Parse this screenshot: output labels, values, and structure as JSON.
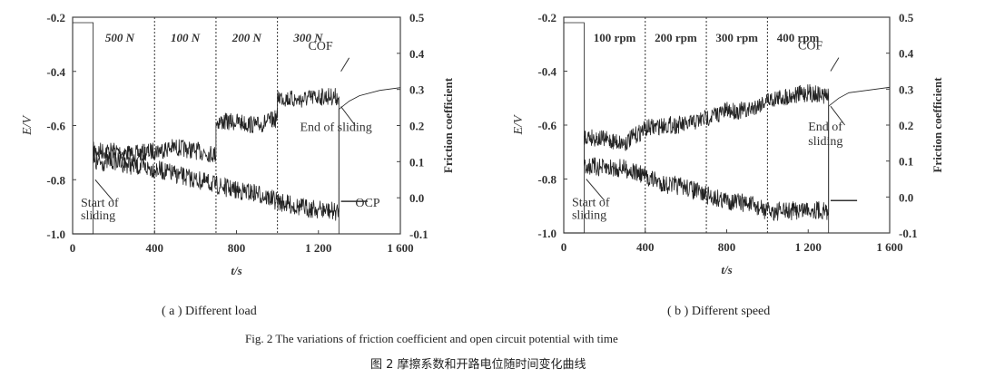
{
  "chart_data": [
    {
      "type": "line",
      "caption": "( a )  Different load",
      "xlabel": "t/s",
      "ylabel": "E/V",
      "y2label": "Friction coefficient",
      "xlim": [
        0,
        1600
      ],
      "ylim": [
        -1.0,
        -0.2
      ],
      "y2lim": [
        -0.1,
        0.5
      ],
      "xticks": [
        "0",
        "400",
        "800",
        "1 200",
        "1 600"
      ],
      "xtick_values": [
        0,
        400,
        800,
        1200,
        1600
      ],
      "yticks": [
        "-1.0",
        "-0.8",
        "-0.6",
        "-0.4",
        "-0.2"
      ],
      "ytick_values": [
        -1.0,
        -0.8,
        -0.6,
        -0.4,
        -0.2
      ],
      "y2ticks": [
        "-0.1",
        "0.0",
        "0.1",
        "0.2",
        "0.3",
        "0.4",
        "0.5"
      ],
      "y2tick_values": [
        -0.1,
        0,
        0.1,
        0.2,
        0.3,
        0.4,
        0.5
      ],
      "dividers": [
        400,
        700,
        1000
      ],
      "regions": [
        {
          "label": "500 N",
          "x": 230
        },
        {
          "label": "100 N",
          "x": 550
        },
        {
          "label": "200 N",
          "x": 850
        },
        {
          "label": "300 N",
          "x": 1150
        }
      ],
      "annotations": {
        "cof": "COF",
        "ocp": "OCP",
        "start": [
          "Start of",
          "sliding"
        ],
        "end": [
          "End of sliding"
        ]
      },
      "series": [
        {
          "name": "COF",
          "axis": "y2",
          "x": [
            0,
            100,
            100,
            200,
            300,
            400,
            500,
            600,
            700,
            700,
            800,
            900,
            1000,
            1000,
            1100,
            1200,
            1300,
            1300
          ],
          "y": [
            -0.1,
            -0.1,
            0.13,
            0.13,
            0.12,
            0.13,
            0.14,
            0.13,
            0.12,
            0.21,
            0.21,
            0.2,
            0.22,
            0.28,
            0.27,
            0.28,
            0.28,
            -0.1
          ]
        },
        {
          "name": "OCP",
          "axis": "y",
          "x": [
            0,
            100,
            100,
            200,
            300,
            400,
            500,
            600,
            700,
            800,
            900,
            1000,
            1100,
            1200,
            1300,
            1300,
            1350,
            1400,
            1500,
            1600
          ],
          "y": [
            -0.22,
            -0.22,
            -0.74,
            -0.73,
            -0.75,
            -0.76,
            -0.78,
            -0.8,
            -0.82,
            -0.84,
            -0.85,
            -0.88,
            -0.9,
            -0.91,
            -0.92,
            -0.54,
            -0.51,
            -0.49,
            -0.47,
            -0.46
          ]
        }
      ]
    },
    {
      "type": "line",
      "caption": "( b )  Different speed",
      "xlabel": "t/s",
      "ylabel": "E/V",
      "y2label": "Friction coefficient",
      "xlim": [
        0,
        1600
      ],
      "ylim": [
        -1.0,
        -0.2
      ],
      "y2lim": [
        -0.1,
        0.5
      ],
      "xticks": [
        "0",
        "400",
        "800",
        "1 200",
        "1 600"
      ],
      "xtick_values": [
        0,
        400,
        800,
        1200,
        1600
      ],
      "yticks": [
        "-1.0",
        "-0.8",
        "-0.6",
        "-0.4",
        "-0.2"
      ],
      "ytick_values": [
        -1.0,
        -0.8,
        -0.6,
        -0.4,
        -0.2
      ],
      "y2ticks": [
        "-0.1",
        "0.0",
        "0.1",
        "0.2",
        "0.3",
        "0.4",
        "0.5"
      ],
      "y2tick_values": [
        -0.1,
        0,
        0.1,
        0.2,
        0.3,
        0.4,
        0.5
      ],
      "dividers": [
        400,
        700,
        1000
      ],
      "regions": [
        {
          "label": "100 rpm",
          "x": 250
        },
        {
          "label": "200 rpm",
          "x": 550
        },
        {
          "label": "300 rpm",
          "x": 850
        },
        {
          "label": "400 rpm",
          "x": 1150
        }
      ],
      "annotations": {
        "cof": "COF",
        "ocp": "",
        "start": [
          "Start of",
          "sliding"
        ],
        "end": [
          "End of",
          "sliding"
        ]
      },
      "series": [
        {
          "name": "COF",
          "axis": "y2",
          "x": [
            0,
            100,
            100,
            200,
            300,
            400,
            500,
            600,
            700,
            800,
            900,
            1000,
            1100,
            1200,
            1300,
            1300
          ],
          "y": [
            -0.1,
            -0.1,
            0.17,
            0.16,
            0.15,
            0.19,
            0.2,
            0.2,
            0.22,
            0.24,
            0.24,
            0.27,
            0.28,
            0.29,
            0.28,
            -0.1
          ]
        },
        {
          "name": "OCP",
          "axis": "y",
          "x": [
            0,
            100,
            100,
            200,
            300,
            400,
            500,
            600,
            700,
            800,
            900,
            1000,
            1100,
            1200,
            1300,
            1300,
            1350,
            1400,
            1500,
            1600
          ],
          "y": [
            -0.22,
            -0.22,
            -0.75,
            -0.76,
            -0.76,
            -0.79,
            -0.82,
            -0.83,
            -0.86,
            -0.88,
            -0.89,
            -0.92,
            -0.92,
            -0.91,
            -0.92,
            -0.53,
            -0.5,
            -0.48,
            -0.47,
            -0.46
          ]
        }
      ]
    }
  ],
  "figure": {
    "caption_en": "Fig. 2    The variations of friction coefficient and open circuit potential with time",
    "caption_zh": "图 2    摩擦系数和开路电位随时间变化曲线"
  }
}
